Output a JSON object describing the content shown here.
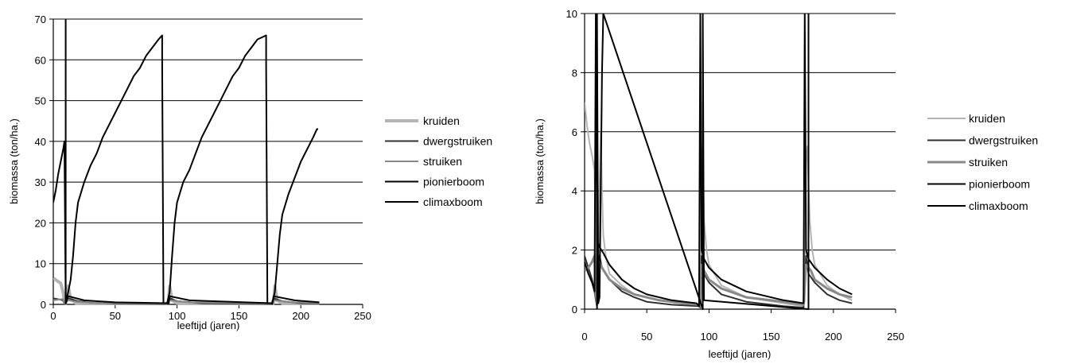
{
  "chart_data": [
    {
      "type": "line",
      "xlabel": "leeftijd (jaren)",
      "ylabel": "biomassa (ton/ha.)",
      "xlim": [
        0,
        250
      ],
      "ylim": [
        0,
        70
      ],
      "xticks": [
        "0",
        "50",
        "100",
        "150",
        "200",
        "250"
      ],
      "yticks": [
        "0",
        "10",
        "20",
        "30",
        "40",
        "50",
        "60",
        "70"
      ],
      "grid": "horizontal",
      "legend_position": "right",
      "series": [
        {
          "name": "kruiden",
          "color": "#b4b4b4",
          "width": 4,
          "points": [
            [
              0,
              6.5
            ],
            [
              3,
              5.8
            ],
            [
              6,
              5.2
            ],
            [
              8,
              3
            ],
            [
              9,
              0.5
            ],
            [
              10,
              0.3
            ],
            [
              12,
              4.5
            ],
            [
              14,
              1.5
            ],
            [
              18,
              0.3
            ],
            [
              40,
              0.1
            ],
            [
              90,
              0.1
            ],
            [
              93,
              0.3
            ],
            [
              94,
              4.5
            ],
            [
              96,
              1
            ],
            [
              100,
              0.3
            ],
            [
              140,
              0.1
            ],
            [
              176,
              0.1
            ],
            [
              178,
              0.3
            ],
            [
              179,
              4.5
            ],
            [
              181,
              1
            ],
            [
              185,
              0.3
            ],
            [
              215,
              0.1
            ]
          ]
        },
        {
          "name": "dwergstruiken",
          "color": "#303030",
          "width": 2,
          "points": [
            [
              0,
              1.5
            ],
            [
              5,
              1.2
            ],
            [
              8,
              1
            ],
            [
              9,
              0.2
            ],
            [
              12,
              1.5
            ],
            [
              20,
              0.8
            ],
            [
              30,
              0.4
            ],
            [
              50,
              0.2
            ],
            [
              90,
              0.1
            ],
            [
              93,
              0.1
            ],
            [
              94,
              1.5
            ],
            [
              100,
              0.8
            ],
            [
              120,
              0.3
            ],
            [
              176,
              0.1
            ],
            [
              178,
              1.5
            ],
            [
              185,
              0.8
            ],
            [
              200,
              0.3
            ],
            [
              215,
              0.2
            ]
          ]
        },
        {
          "name": "struiken",
          "color": "#888888",
          "width": 2,
          "points": [
            [
              0,
              1
            ],
            [
              8,
              1.3
            ],
            [
              9,
              0.2
            ],
            [
              12,
              1
            ],
            [
              20,
              0.6
            ],
            [
              40,
              0.3
            ],
            [
              90,
              0.2
            ],
            [
              93,
              0.1
            ],
            [
              94,
              1
            ],
            [
              110,
              0.5
            ],
            [
              176,
              0.2
            ],
            [
              178,
              1
            ],
            [
              195,
              0.5
            ],
            [
              215,
              0.3
            ]
          ]
        },
        {
          "name": "pionierboom",
          "color": "#000000",
          "width": 2,
          "points": [
            [
              0,
              25
            ],
            [
              2,
              28
            ],
            [
              4,
              32
            ],
            [
              6,
              35
            ],
            [
              8,
              38
            ],
            [
              9,
              40
            ],
            [
              10,
              0.2
            ],
            [
              12,
              2
            ],
            [
              25,
              1
            ],
            [
              50,
              0.5
            ],
            [
              92,
              0.3
            ],
            [
              93,
              0.1
            ],
            [
              94,
              2
            ],
            [
              110,
              1
            ],
            [
              176,
              0.3
            ],
            [
              177,
              0.1
            ],
            [
              178,
              2
            ],
            [
              195,
              1
            ],
            [
              215,
              0.5
            ]
          ]
        },
        {
          "name": "climaxboom",
          "color": "#000000",
          "width": 2,
          "points": [
            [
              10,
              70
            ],
            [
              10,
              0.5
            ],
            [
              12,
              3
            ],
            [
              14,
              6
            ],
            [
              16,
              12
            ],
            [
              18,
              20
            ],
            [
              20,
              25
            ],
            [
              25,
              30
            ],
            [
              30,
              34
            ],
            [
              35,
              37
            ],
            [
              40,
              41
            ],
            [
              45,
              44
            ],
            [
              50,
              47
            ],
            [
              55,
              50
            ],
            [
              60,
              53
            ],
            [
              65,
              56
            ],
            [
              70,
              58
            ],
            [
              75,
              61
            ],
            [
              80,
              63
            ],
            [
              85,
              65
            ],
            [
              88,
              66
            ],
            [
              88,
              59
            ],
            [
              89,
              0.3
            ],
            [
              92,
              0.3
            ],
            [
              94,
              3
            ],
            [
              96,
              12
            ],
            [
              98,
              20
            ],
            [
              100,
              25
            ],
            [
              105,
              30
            ],
            [
              110,
              33
            ],
            [
              115,
              37
            ],
            [
              120,
              41
            ],
            [
              125,
              44
            ],
            [
              130,
              47
            ],
            [
              135,
              50
            ],
            [
              140,
              53
            ],
            [
              145,
              56
            ],
            [
              150,
              58
            ],
            [
              155,
              61
            ],
            [
              160,
              63
            ],
            [
              165,
              65
            ],
            [
              172,
              66
            ],
            [
              172,
              59
            ],
            [
              173,
              0.3
            ],
            [
              177,
              0.3
            ],
            [
              179,
              3
            ],
            [
              181,
              10
            ],
            [
              183,
              17
            ],
            [
              185,
              22
            ],
            [
              190,
              27
            ],
            [
              195,
              31
            ],
            [
              200,
              35
            ],
            [
              205,
              38
            ],
            [
              210,
              41
            ],
            [
              213,
              43
            ],
            [
              214,
              43
            ]
          ]
        }
      ]
    },
    {
      "type": "line",
      "xlabel": "leeftijd (jaren)",
      "ylabel": "biomassa (ton/ha.)",
      "xlim": [
        0,
        250
      ],
      "ylim": [
        0,
        10
      ],
      "xticks": [
        "0",
        "50",
        "100",
        "150",
        "200",
        "250"
      ],
      "yticks": [
        "0",
        "2",
        "4",
        "6",
        "8",
        "10"
      ],
      "grid": "horizontal",
      "legend_position": "right",
      "series": [
        {
          "name": "kruiden",
          "color": "#b4b4b4",
          "width": 2,
          "points": [
            [
              0,
              7
            ],
            [
              2,
              6.2
            ],
            [
              4,
              5.6
            ],
            [
              6,
              5.2
            ],
            [
              8,
              4.7
            ],
            [
              9,
              2
            ],
            [
              10,
              0.3
            ],
            [
              11,
              1.5
            ],
            [
              12,
              4
            ],
            [
              13,
              6
            ],
            [
              14,
              4
            ],
            [
              15,
              2.5
            ],
            [
              17,
              1.8
            ],
            [
              20,
              1.2
            ],
            [
              30,
              0.8
            ],
            [
              40,
              0.5
            ],
            [
              60,
              0.3
            ],
            [
              80,
              0.2
            ],
            [
              92,
              0.1
            ],
            [
              93,
              0.3
            ],
            [
              94,
              5
            ],
            [
              95,
              5.6
            ],
            [
              96,
              3
            ],
            [
              98,
              2
            ],
            [
              100,
              1.5
            ],
            [
              110,
              0.8
            ],
            [
              130,
              0.4
            ],
            [
              160,
              0.2
            ],
            [
              176,
              0.1
            ],
            [
              177,
              0.3
            ],
            [
              178,
              5
            ],
            [
              179,
              5.5
            ],
            [
              181,
              3
            ],
            [
              183,
              2
            ],
            [
              185,
              1.5
            ],
            [
              195,
              0.8
            ],
            [
              205,
              0.5
            ],
            [
              215,
              0.3
            ]
          ]
        },
        {
          "name": "dwergstruiken",
          "color": "#303030",
          "width": 2,
          "points": [
            [
              0,
              1.8
            ],
            [
              3,
              1.4
            ],
            [
              6,
              1
            ],
            [
              8,
              0.6
            ],
            [
              9,
              0.3
            ],
            [
              10,
              0.1
            ],
            [
              12,
              1.8
            ],
            [
              14,
              1.4
            ],
            [
              20,
              1
            ],
            [
              30,
              0.6
            ],
            [
              40,
              0.4
            ],
            [
              50,
              0.25
            ],
            [
              70,
              0.15
            ],
            [
              92,
              0.1
            ],
            [
              93,
              0.05
            ],
            [
              94,
              1.8
            ],
            [
              96,
              1.2
            ],
            [
              100,
              0.9
            ],
            [
              110,
              0.5
            ],
            [
              130,
              0.25
            ],
            [
              160,
              0.1
            ],
            [
              176,
              0.05
            ],
            [
              178,
              1.8
            ],
            [
              180,
              1.2
            ],
            [
              185,
              0.9
            ],
            [
              195,
              0.5
            ],
            [
              205,
              0.3
            ],
            [
              215,
              0.2
            ]
          ]
        },
        {
          "name": "struiken",
          "color": "#888888",
          "width": 3,
          "points": [
            [
              0,
              1.3
            ],
            [
              3,
              1.4
            ],
            [
              6,
              1.6
            ],
            [
              8,
              1.8
            ],
            [
              9,
              0.5
            ],
            [
              10,
              0.2
            ],
            [
              12,
              1.6
            ],
            [
              14,
              1.4
            ],
            [
              20,
              1
            ],
            [
              30,
              0.7
            ],
            [
              40,
              0.5
            ],
            [
              60,
              0.3
            ],
            [
              80,
              0.2
            ],
            [
              92,
              0.15
            ],
            [
              93,
              0.1
            ],
            [
              94,
              1.5
            ],
            [
              96,
              1.3
            ],
            [
              100,
              1
            ],
            [
              110,
              0.7
            ],
            [
              130,
              0.4
            ],
            [
              160,
              0.25
            ],
            [
              176,
              0.15
            ],
            [
              178,
              1.5
            ],
            [
              182,
              1.3
            ],
            [
              185,
              1
            ],
            [
              195,
              0.7
            ],
            [
              205,
              0.5
            ],
            [
              215,
              0.4
            ]
          ]
        },
        {
          "name": "pionierboom",
          "color": "#000000",
          "width": 2,
          "points": [
            [
              0,
              1.6
            ],
            [
              3,
              1.2
            ],
            [
              6,
              0.9
            ],
            [
              8,
              0.6
            ],
            [
              9,
              10
            ],
            [
              10,
              2.3
            ],
            [
              12,
              2.1
            ],
            [
              15,
              1.9
            ],
            [
              20,
              1.5
            ],
            [
              30,
              1
            ],
            [
              40,
              0.7
            ],
            [
              50,
              0.5
            ],
            [
              70,
              0.3
            ],
            [
              90,
              0.2
            ],
            [
              92,
              0.1
            ],
            [
              93,
              10
            ],
            [
              94,
              2
            ],
            [
              96,
              1.7
            ],
            [
              100,
              1.4
            ],
            [
              110,
              1
            ],
            [
              130,
              0.6
            ],
            [
              160,
              0.3
            ],
            [
              176,
              0.2
            ],
            [
              177,
              10
            ],
            [
              178,
              2
            ],
            [
              180,
              1.7
            ],
            [
              185,
              1.4
            ],
            [
              195,
              1
            ],
            [
              205,
              0.7
            ],
            [
              215,
              0.5
            ]
          ]
        },
        {
          "name": "climaxboom",
          "color": "#000000",
          "width": 2,
          "points": [
            [
              10,
              0
            ],
            [
              10,
              10
            ],
            [
              11,
              0.2
            ],
            [
              12,
              0.4
            ],
            [
              14,
              8
            ],
            [
              15,
              10
            ],
            [
              95,
              0
            ],
            [
              95,
              10
            ],
            [
              96,
              0.3
            ],
            [
              180,
              0
            ],
            [
              180,
              10
            ]
          ]
        }
      ]
    }
  ]
}
